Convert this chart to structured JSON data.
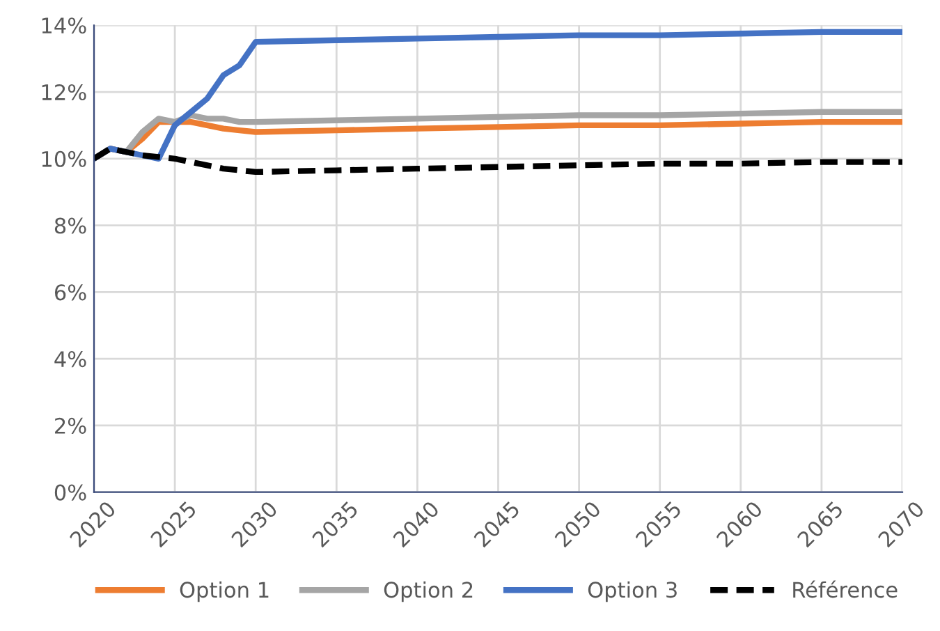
{
  "chart_data": {
    "type": "line",
    "x": [
      2020,
      2021,
      2022,
      2023,
      2024,
      2025,
      2026,
      2027,
      2028,
      2029,
      2030,
      2035,
      2040,
      2045,
      2050,
      2055,
      2060,
      2065,
      2070
    ],
    "series": [
      {
        "name": "Option 1",
        "color": "#ed7d31",
        "line_style": "solid",
        "values": [
          10.0,
          10.3,
          10.2,
          10.6,
          11.1,
          11.1,
          11.1,
          11.0,
          10.9,
          10.85,
          10.8,
          10.85,
          10.9,
          10.95,
          11.0,
          11.0,
          11.05,
          11.1,
          11.1
        ]
      },
      {
        "name": "Option 2",
        "color": "#a5a5a5",
        "line_style": "solid",
        "values": [
          10.0,
          10.3,
          10.2,
          10.8,
          11.2,
          11.1,
          11.3,
          11.2,
          11.2,
          11.1,
          11.1,
          11.15,
          11.2,
          11.25,
          11.3,
          11.3,
          11.35,
          11.4,
          11.4
        ]
      },
      {
        "name": "Option 3",
        "color": "#4472c4",
        "line_style": "solid",
        "values": [
          10.0,
          10.3,
          10.2,
          10.1,
          10.0,
          11.0,
          11.4,
          11.8,
          12.5,
          12.8,
          13.5,
          13.55,
          13.6,
          13.65,
          13.7,
          13.7,
          13.75,
          13.8,
          13.8
        ]
      },
      {
        "name": "Référence",
        "color": "#000000",
        "line_style": "dashed",
        "values": [
          10.0,
          10.3,
          10.2,
          10.1,
          10.05,
          10.0,
          9.9,
          9.8,
          9.7,
          9.65,
          9.6,
          9.65,
          9.7,
          9.75,
          9.8,
          9.85,
          9.85,
          9.9,
          9.9
        ]
      }
    ],
    "xlim": [
      2020,
      2070
    ],
    "xticks": [
      2020,
      2025,
      2030,
      2035,
      2040,
      2045,
      2050,
      2055,
      2060,
      2065,
      2070
    ],
    "ylim": [
      0,
      14
    ],
    "yticks": [
      {
        "value": 0,
        "label": "0%"
      },
      {
        "value": 2,
        "label": "2%"
      },
      {
        "value": 4,
        "label": "4%"
      },
      {
        "value": 6,
        "label": "6%"
      },
      {
        "value": 8,
        "label": "8%"
      },
      {
        "value": 10,
        "label": "10%"
      },
      {
        "value": 12,
        "label": "12%"
      },
      {
        "value": 14,
        "label": "14%"
      }
    ],
    "grid": true,
    "legend": "bottom",
    "marker": "none"
  }
}
